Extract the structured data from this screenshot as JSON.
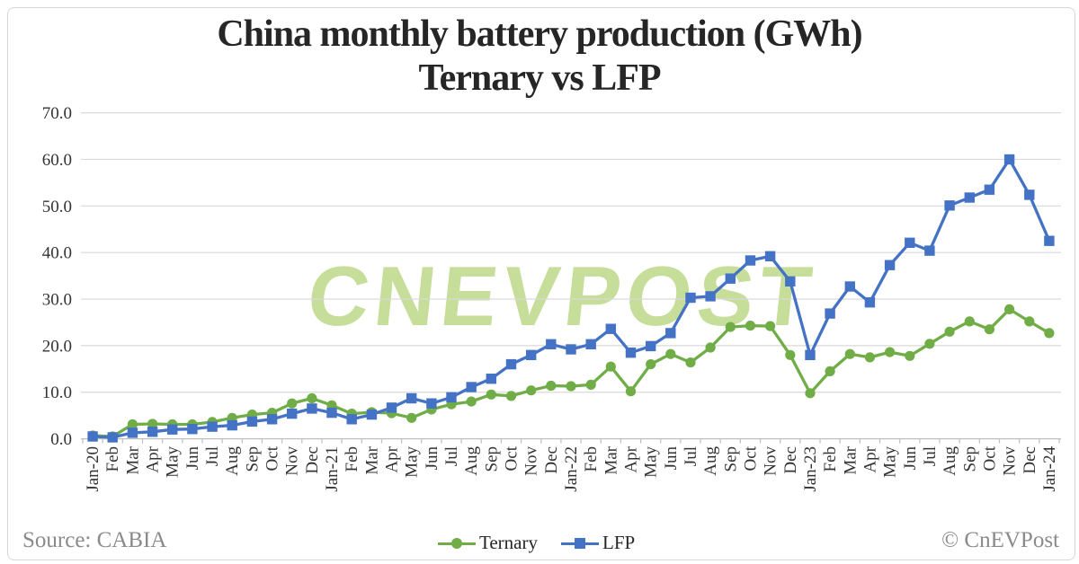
{
  "title": {
    "line1": "China monthly battery production (GWh)",
    "line2": "Ternary vs LFP"
  },
  "watermark": "CNEVPOST",
  "footer": {
    "source": "Source: CABIA",
    "credit": "© CnEVPost"
  },
  "colors": {
    "grid": "#d9d9d9",
    "axis_line": "#bfbfbf",
    "tick_label": "#333333",
    "title_text": "#262626",
    "footer_text": "#8a8a8a",
    "watermark": "#c6de99",
    "ternary": "#70AD47",
    "lfp": "#4472C4"
  },
  "chart_data": {
    "type": "line",
    "title": "China monthly battery production (GWh) Ternary vs LFP",
    "xlabel": "",
    "ylabel": "",
    "ylim": [
      0,
      70
    ],
    "ytick_step": 10,
    "ytick_decimals": 1,
    "grid": true,
    "legend_position": "bottom",
    "categories": [
      "Jan-20",
      "Feb",
      "Mar",
      "Apr",
      "May",
      "Jun",
      "Jul",
      "Aug",
      "Sep",
      "Oct",
      "Nov",
      "Dec",
      "Jan-21",
      "Feb",
      "Mar",
      "Apr",
      "May",
      "Jun",
      "Jul",
      "Aug",
      "Sep",
      "Oct",
      "Nov",
      "Dec",
      "Jan-22",
      "Feb",
      "Mar",
      "Apr",
      "May",
      "Jun",
      "Jul",
      "Aug",
      "Sep",
      "Oct",
      "Nov",
      "Dec",
      "Jan-23",
      "Feb",
      "Mar",
      "Apr",
      "May",
      "Jun",
      "Jul",
      "Aug",
      "Sep",
      "Oct",
      "Nov",
      "Dec",
      "Jan-24"
    ],
    "series": [
      {
        "name": "Ternary",
        "marker": "circle",
        "color": "#70AD47",
        "values": [
          0.7,
          0.5,
          3.1,
          3.2,
          3.1,
          3.1,
          3.6,
          4.5,
          5.2,
          5.6,
          7.6,
          8.7,
          7.2,
          5.4,
          5.7,
          5.5,
          4.5,
          6.3,
          7.4,
          8.0,
          9.5,
          9.2,
          10.4,
          11.4,
          11.3,
          11.6,
          15.5,
          10.2,
          16.0,
          18.2,
          16.4,
          19.6,
          24.0,
          24.3,
          24.2,
          18.0,
          9.8,
          14.5,
          18.2,
          17.5,
          18.6,
          17.8,
          20.4,
          23.0,
          25.2,
          23.5,
          27.8,
          25.2,
          22.7
        ]
      },
      {
        "name": "LFP",
        "marker": "square",
        "color": "#4472C4",
        "values": [
          0.5,
          0.3,
          1.3,
          1.5,
          2.0,
          2.1,
          2.6,
          2.9,
          3.7,
          4.2,
          5.4,
          6.5,
          5.6,
          4.2,
          5.2,
          6.7,
          8.7,
          7.6,
          8.9,
          11.1,
          12.9,
          16.0,
          18.0,
          20.3,
          19.2,
          20.3,
          23.6,
          18.5,
          19.9,
          22.7,
          30.3,
          30.6,
          34.4,
          38.3,
          39.2,
          33.8,
          18.0,
          26.9,
          32.7,
          29.3,
          37.3,
          42.1,
          40.4,
          50.1,
          51.8,
          53.5,
          60.0,
          52.4,
          42.5
        ]
      }
    ]
  }
}
